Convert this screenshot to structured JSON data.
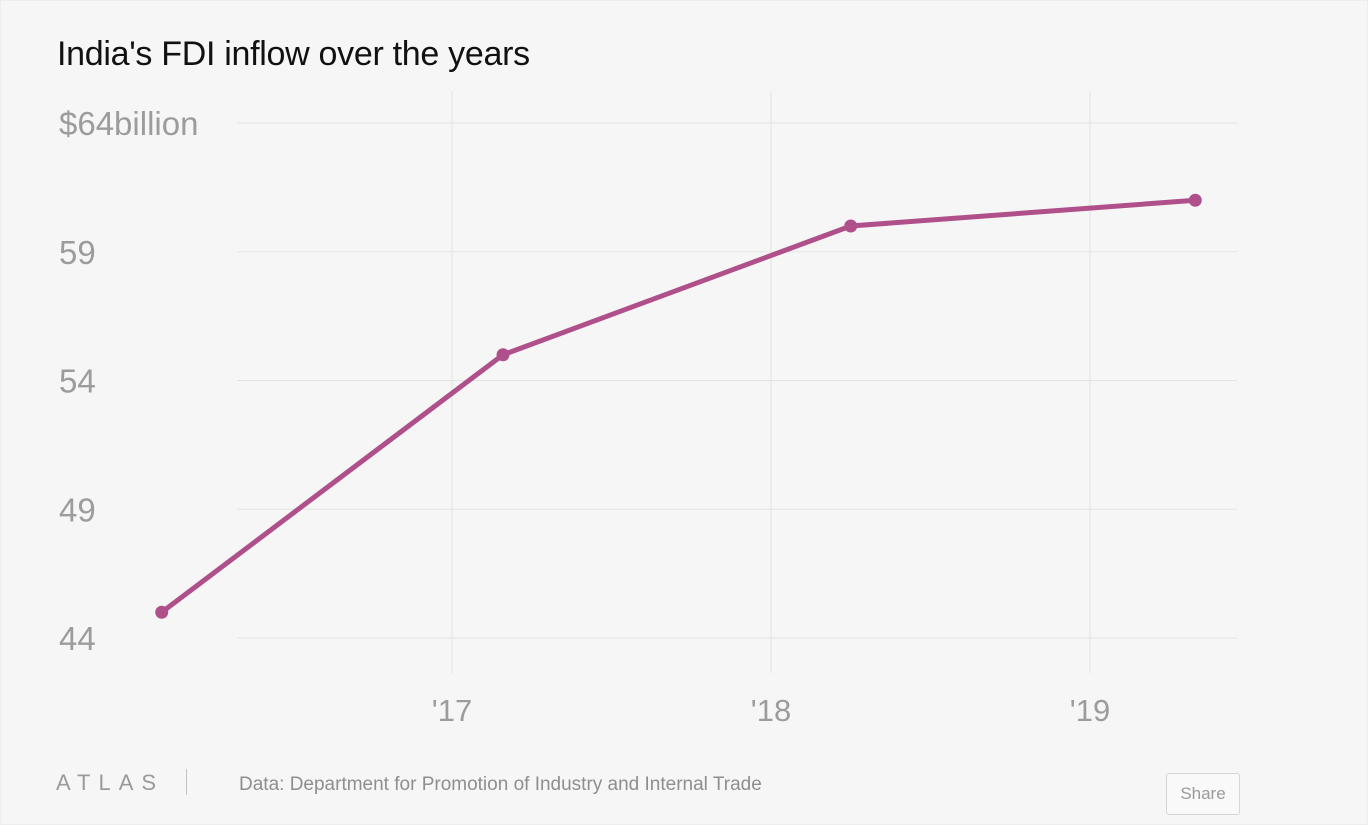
{
  "chart_data": {
    "type": "line",
    "title": "India's FDI inflow over the years",
    "xlabel": "",
    "ylabel": "",
    "x_ticks": [
      {
        "year": 2017,
        "label": "'17"
      },
      {
        "year": 2018,
        "label": "'18"
      },
      {
        "year": 2019,
        "label": "'19"
      }
    ],
    "y_ticks": [
      {
        "value": 44,
        "label": "44"
      },
      {
        "value": 49,
        "label": "49"
      },
      {
        "value": 54,
        "label": "54"
      },
      {
        "value": 59,
        "label": "59"
      },
      {
        "value": 64,
        "label": "$64billion"
      }
    ],
    "xlim": [
      2016.0,
      2019.5
    ],
    "ylim": [
      42.8,
      65.1
    ],
    "series": [
      {
        "color": "#b0508a",
        "points": [
          {
            "x": 2016.09,
            "y": 45.0
          },
          {
            "x": 2017.16,
            "y": 55.0
          },
          {
            "x": 2018.25,
            "y": 60.0
          },
          {
            "x": 2019.33,
            "y": 61.0
          }
        ]
      }
    ],
    "grid": true,
    "legend": "none"
  },
  "footer": {
    "brand": "ATLAS",
    "source": "Data:  Department for Promotion of Industry and Internal Trade",
    "share_label": "Share"
  }
}
